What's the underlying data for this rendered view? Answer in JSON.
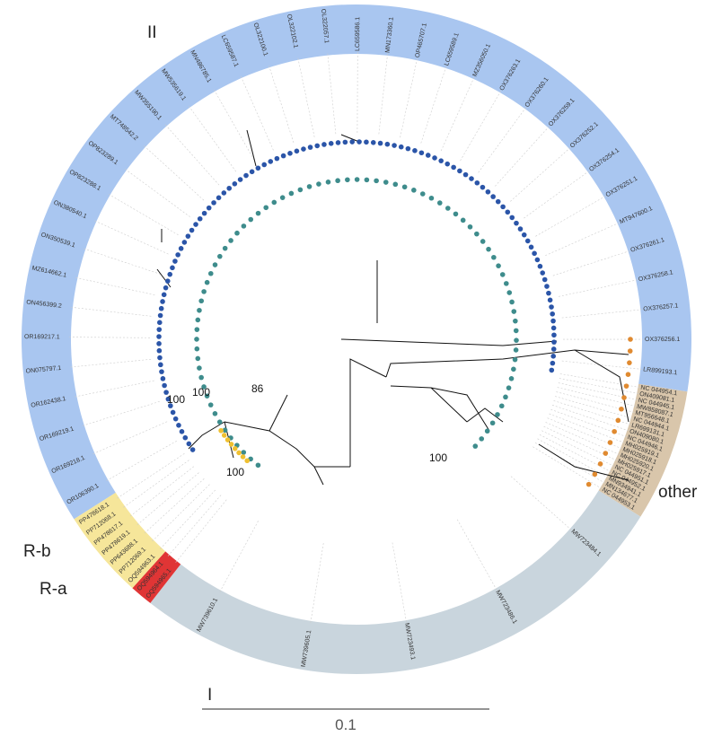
{
  "clades": [
    {
      "label": "II",
      "leaves": [
        "OR106390.1",
        "OR169218.1",
        "OR169219.1",
        "OR162438.1",
        "ON075797.1",
        "OR169217.1",
        "ON456399.2",
        "MZ614662.1",
        "ON350539.1",
        "ON380540.1",
        "OP823288.1",
        "OP823289.1",
        "MT748542.2",
        "MW355190.1",
        "MW535619.1",
        "MN486785.1",
        "LC659587.1",
        "OL322100.1",
        "OL322102.1",
        "OL322057.1",
        "LC659586.1",
        "MN173360.1",
        "OP465707.1",
        "LC659589.1",
        "MZ356050.1",
        "OX376263.1",
        "OX376260.1",
        "OX376259.1",
        "OX376252.1",
        "OX376254.1",
        "OX376251.1",
        "MT947600.1",
        "OX376261.1",
        "OX376258.1",
        "OX376257.1",
        "OX376256.1",
        "LR899193.1"
      ]
    },
    {
      "label": "other",
      "leaves": [
        "NC 044954.1",
        "ON409081.1",
        "NC 044945.1",
        "MW858087.1",
        "MT956648.1",
        "NC 044944.1",
        "LR699131.1",
        "ON409080.1",
        "NC 044946.1",
        "MH025919.1",
        "MH025918.1",
        "MH025920.1",
        "MH025917.1",
        "NC 044951.1",
        "NC 044952.1",
        "MN934941.1",
        "MN134677.1",
        "NC 044953.1"
      ]
    },
    {
      "label": "I",
      "leaves": [
        "MW723484.1",
        "MW723486.1",
        "MW723493.1",
        "MW739605.1",
        "MW739610.1"
      ]
    },
    {
      "label": "R-a",
      "leaves": [
        "OQ594965.1",
        "OQ594964.1"
      ]
    },
    {
      "label": "R-b",
      "leaves": [
        "OQ594963.1",
        "PP712069.1",
        "PP643688.1",
        "PP478619.1",
        "PP478617.1",
        "PP712068.1",
        "PP478618.1"
      ]
    }
  ],
  "bootstrap": [
    100,
    100,
    86,
    100,
    100
  ],
  "scale_bar": {
    "label": "0.1"
  }
}
